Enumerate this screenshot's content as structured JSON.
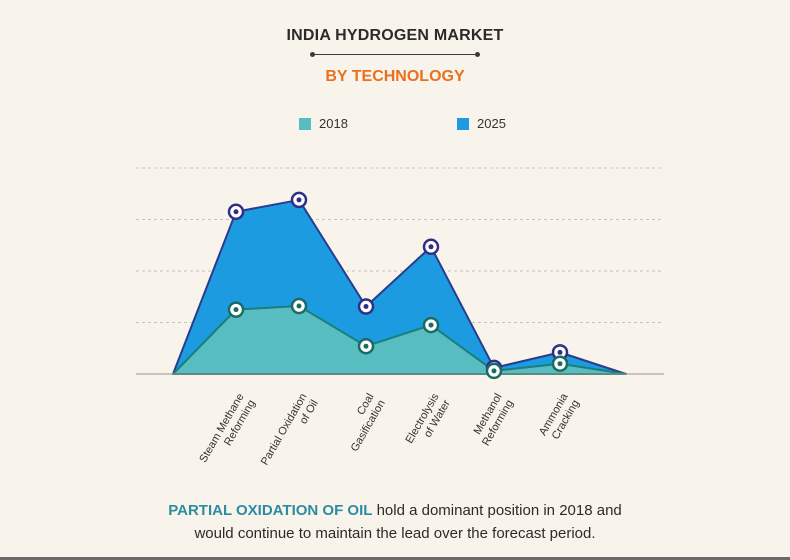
{
  "header": {
    "title": "INDIA HYDROGEN MARKET",
    "subtitle": "BY TECHNOLOGY"
  },
  "caption": {
    "highlight": "PARTIAL OXIDATION OF OIL",
    "line1_rest": " hold a dominant position in 2018 and",
    "line2": "would continue to maintain the lead over the forecast period."
  },
  "colors": {
    "series_2018": "#58bdc0",
    "series_2025": "#1d9be0",
    "line_2018": "#1a7f7b",
    "line_2025": "#2a3c8c",
    "marker_2018_ring": "#1a6b62",
    "marker_2025_ring": "#2f2f85",
    "grid": "#c8c2b8"
  },
  "chart_data": {
    "type": "area",
    "categories": [
      "Steam Methane Reforming",
      "Partial Oxidation of Oil",
      "Coal Gasification",
      "Electrolysis of Water",
      "Methanol Reforming",
      "Ammonia Cracking"
    ],
    "category_lines": [
      [
        "Steam Methane",
        "Reforming"
      ],
      [
        "Partial Oxidation",
        "of Oil"
      ],
      [
        "Coal",
        "Gasification"
      ],
      [
        "Electrolysis",
        "of Water"
      ],
      [
        "Methanol",
        "Reforming"
      ],
      [
        "Ammonia",
        "Cracking"
      ]
    ],
    "ylim": [
      0,
      4
    ],
    "gridlines": [
      1,
      2,
      3,
      4
    ],
    "grid": true,
    "legend_position": "top-center",
    "series": [
      {
        "name": "2018",
        "values": [
          1.25,
          1.32,
          0.54,
          0.95,
          0.06,
          0.2
        ]
      },
      {
        "name": "2025",
        "values": [
          3.15,
          3.38,
          1.31,
          2.47,
          0.12,
          0.42
        ]
      }
    ]
  }
}
